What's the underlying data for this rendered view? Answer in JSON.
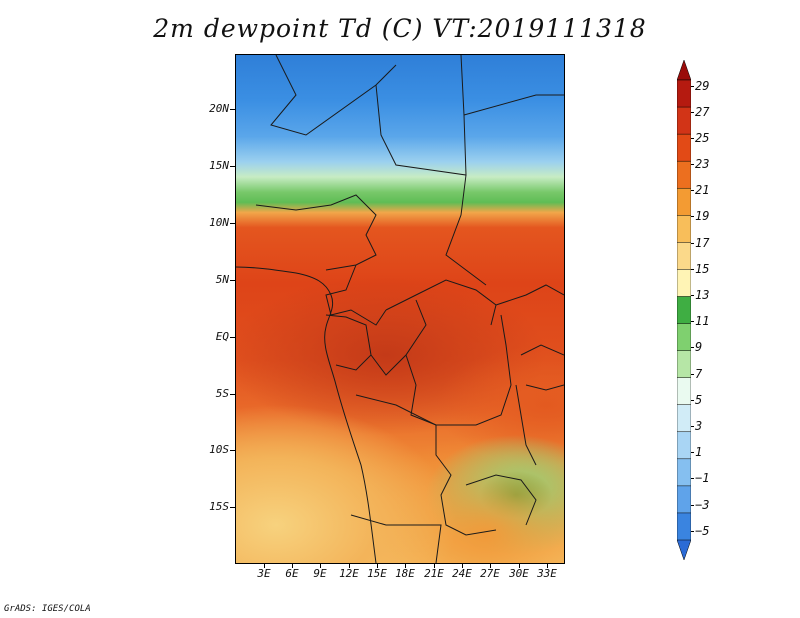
{
  "title": "2m dewpoint Td (C) VT:2019111318",
  "footer": "GrADS: IGES/COLA",
  "map": {
    "lat_labels": [
      "20N",
      "15N",
      "10N",
      "5N",
      "EQ",
      "5S",
      "10S",
      "15S"
    ],
    "lon_labels": [
      "3E",
      "6E",
      "9E",
      "12E",
      "15E",
      "18E",
      "21E",
      "24E",
      "27E",
      "30E",
      "33E"
    ]
  },
  "colorbar": {
    "labels": [
      "29",
      "27",
      "25",
      "23",
      "21",
      "19",
      "17",
      "15",
      "13",
      "11",
      "9",
      "7",
      "5",
      "3",
      "1",
      "−1",
      "−3",
      "−5"
    ],
    "colors": [
      "#2b6bd6",
      "#3a84e0",
      "#5fa3ea",
      "#85bff0",
      "#a9d5f4",
      "#d1ecf7",
      "#eafaf0",
      "#b6e6a6",
      "#7fd06f",
      "#3fae43",
      "#fff4b5",
      "#fbd98a",
      "#f8be5a",
      "#f39b33",
      "#ec6f1f",
      "#e24a16",
      "#d23417",
      "#b51a10",
      "#9a0c0a"
    ]
  }
}
